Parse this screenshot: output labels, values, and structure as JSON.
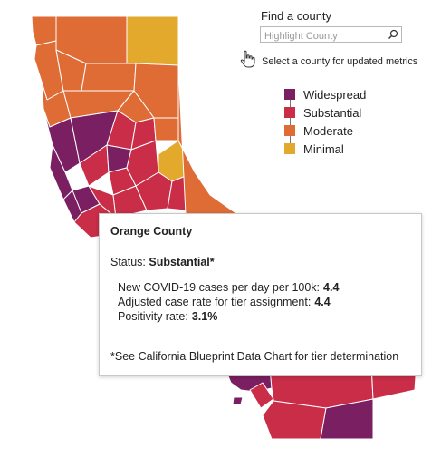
{
  "colors": {
    "widespread": "#7a1f62",
    "substantial": "#c92d47",
    "moderate": "#df6b35",
    "minimal": "#e2a92c",
    "county_outline": "#ffffff"
  },
  "map": {
    "selected_county": "Orange County"
  },
  "search": {
    "title": "Find a county",
    "placeholder": "Highlight County",
    "value": "",
    "icon": "search-icon"
  },
  "hint": {
    "icon": "hand-pointer-icon",
    "text": "Select a county for updated metrics"
  },
  "legend": {
    "items": [
      {
        "label": "Widespread",
        "tier": "widespread"
      },
      {
        "label": "Substantial",
        "tier": "substantial"
      },
      {
        "label": "Moderate",
        "tier": "moderate"
      },
      {
        "label": "Minimal",
        "tier": "minimal"
      }
    ]
  },
  "tooltip": {
    "title": "Orange County",
    "status_label": "Status:",
    "status_value": "Substantial*",
    "metrics": [
      {
        "label": "New COVID-19 cases per day per 100k:",
        "value": "4.4"
      },
      {
        "label": "Adjusted case rate for tier assignment:",
        "value": "4.4"
      },
      {
        "label": "Positivity rate:",
        "value": "3.1%"
      }
    ],
    "footnote": "*See California Blueprint Data Chart for tier determination"
  }
}
